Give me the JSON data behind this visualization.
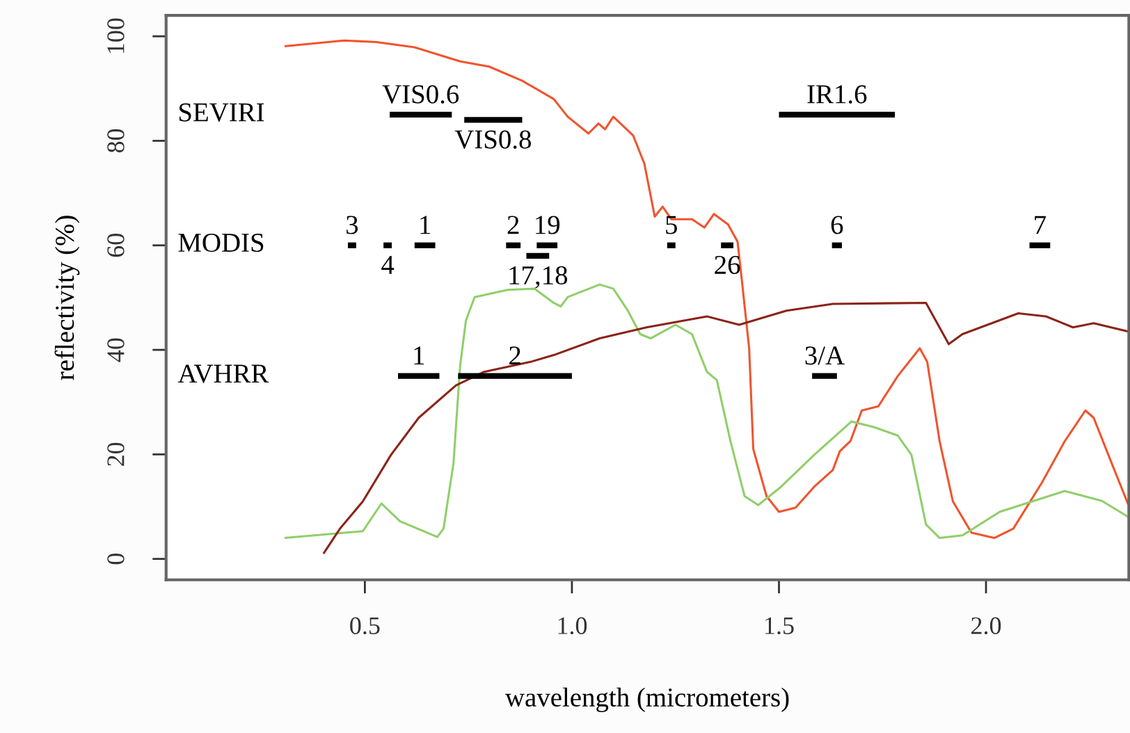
{
  "chart_data": {
    "type": "line",
    "xlabel": "wavelength (micrometers)",
    "ylabel": "reflectivity (%)",
    "xlim": [
      0.02,
      2.345
    ],
    "ylim": [
      -4,
      104
    ],
    "xticks": [
      0.5,
      {
        "value": 1.0,
        "label": "1.0"
      },
      1.5,
      {
        "value": 2.0,
        "label": "2.0"
      }
    ],
    "yticks": [
      0,
      20,
      40,
      60,
      80,
      100
    ],
    "grid": false,
    "legend": false,
    "series": [
      {
        "color": "#f0542e",
        "x": [
          0.306,
          0.45,
          0.528,
          0.62,
          0.73,
          0.8,
          0.88,
          0.956,
          0.99,
          1.04,
          1.064,
          1.08,
          1.1,
          1.148,
          1.175,
          1.2,
          1.219,
          1.24,
          1.29,
          1.32,
          1.343,
          1.377,
          1.4,
          1.41,
          1.428,
          1.438,
          1.47,
          1.5,
          1.54,
          1.585,
          1.63,
          1.647,
          1.673,
          1.7,
          1.74,
          1.787,
          1.84,
          1.858,
          1.888,
          1.92,
          1.965,
          2.02,
          2.066,
          2.135,
          2.19,
          2.24,
          2.26,
          2.3,
          2.344
        ],
        "values": [
          98.1,
          99.2,
          98.9,
          97.9,
          95.2,
          94.2,
          91.5,
          88,
          84.6,
          81.4,
          83.3,
          82.2,
          84.6,
          81,
          75.6,
          65.5,
          67.4,
          65,
          65,
          63.4,
          66,
          64,
          60.7,
          53.6,
          40.3,
          21,
          12,
          9,
          9.8,
          13.8,
          17,
          20.6,
          22.6,
          28.4,
          29.2,
          35,
          40.3,
          37.7,
          22.5,
          11,
          5,
          4,
          5.8,
          14.6,
          22.5,
          28.4,
          27,
          19,
          10.3
        ]
      },
      {
        "color": "#8fcf6a",
        "x": [
          0.306,
          0.495,
          0.54,
          0.585,
          0.675,
          0.69,
          0.714,
          0.73,
          0.744,
          0.765,
          0.845,
          0.91,
          0.956,
          0.973,
          0.99,
          1.067,
          1.1,
          1.135,
          1.165,
          1.19,
          1.25,
          1.29,
          1.326,
          1.35,
          1.383,
          1.417,
          1.45,
          1.505,
          1.585,
          1.675,
          1.73,
          1.787,
          1.82,
          1.855,
          1.888,
          1.943,
          2.033,
          2.19,
          2.28,
          2.344
        ],
        "values": [
          4,
          5.3,
          10.6,
          7.2,
          4.2,
          5.8,
          18.3,
          36.9,
          45.6,
          50.1,
          51.5,
          51.7,
          49,
          48.3,
          50.1,
          52.5,
          51.7,
          47.5,
          43,
          42.2,
          44.8,
          43,
          35.8,
          34.2,
          22.5,
          12,
          10.3,
          13.8,
          19.9,
          26.3,
          25.2,
          23.6,
          19.9,
          6.6,
          4,
          4.5,
          9,
          13,
          11.1,
          8
        ]
      },
      {
        "color": "#8b2418",
        "x": [
          0.4,
          0.44,
          0.495,
          0.563,
          0.63,
          0.72,
          0.788,
          0.9,
          0.956,
          1.067,
          1.18,
          1.326,
          1.404,
          1.518,
          1.63,
          1.855,
          1.91,
          1.943,
          2.078,
          2.145,
          2.21,
          2.26,
          2.344
        ],
        "values": [
          1,
          5.8,
          11,
          19.9,
          27,
          33.2,
          35.8,
          37.7,
          39,
          42.2,
          44.3,
          46.4,
          44.8,
          47.5,
          48.8,
          49,
          41.1,
          43,
          47,
          46.4,
          44.3,
          45.1,
          43.5
        ]
      },
      {
        "name": "VIS0.6",
        "color": "#000000",
        "x": [
          0.56,
          0.71
        ],
        "values": [
          85,
          85
        ]
      },
      {
        "name": "VIS0.8",
        "color": "#000000",
        "x": [
          0.74,
          0.88
        ],
        "values": [
          84,
          84
        ]
      },
      {
        "name": "IR1.6",
        "color": "#000000",
        "x": [
          1.5,
          1.78
        ],
        "values": [
          85,
          85
        ]
      },
      {
        "name": "3",
        "color": "#000000",
        "x": [
          0.459,
          0.479
        ],
        "values": [
          60,
          60
        ]
      },
      {
        "name": "4",
        "color": "#000000",
        "x": [
          0.545,
          0.565
        ],
        "values": [
          60,
          60
        ]
      },
      {
        "name": "1",
        "color": "#000000",
        "x": [
          0.62,
          0.67
        ],
        "values": [
          60,
          60
        ]
      },
      {
        "name": "2",
        "color": "#000000",
        "x": [
          0.841,
          0.876
        ],
        "values": [
          60,
          60
        ]
      },
      {
        "name": "19",
        "color": "#000000",
        "x": [
          0.915,
          0.965
        ],
        "values": [
          60,
          60
        ]
      },
      {
        "name": "17,18",
        "color": "#000000",
        "x": [
          0.89,
          0.945
        ],
        "values": [
          58,
          58
        ]
      },
      {
        "name": "5",
        "color": "#000000",
        "x": [
          1.23,
          1.25
        ],
        "values": [
          60,
          60
        ]
      },
      {
        "name": "26",
        "color": "#000000",
        "x": [
          1.36,
          1.39
        ],
        "values": [
          60,
          60
        ]
      },
      {
        "name": "6",
        "color": "#000000",
        "x": [
          1.628,
          1.652
        ],
        "values": [
          60,
          60
        ]
      },
      {
        "name": "7",
        "color": "#000000",
        "x": [
          2.105,
          2.155
        ],
        "values": [
          60,
          60
        ]
      },
      {
        "name": "1",
        "color": "#000000",
        "x": [
          0.58,
          0.68
        ],
        "values": [
          35,
          35
        ]
      },
      {
        "name": "2",
        "color": "#000000",
        "x": [
          0.725,
          1.0
        ],
        "values": [
          35,
          35
        ]
      },
      {
        "name": "3/A",
        "color": "#000000",
        "x": [
          1.58,
          1.64
        ],
        "values": [
          35,
          35
        ]
      }
    ],
    "annotations": [
      "SEVIRI",
      "MODIS",
      "AVHRR"
    ]
  }
}
